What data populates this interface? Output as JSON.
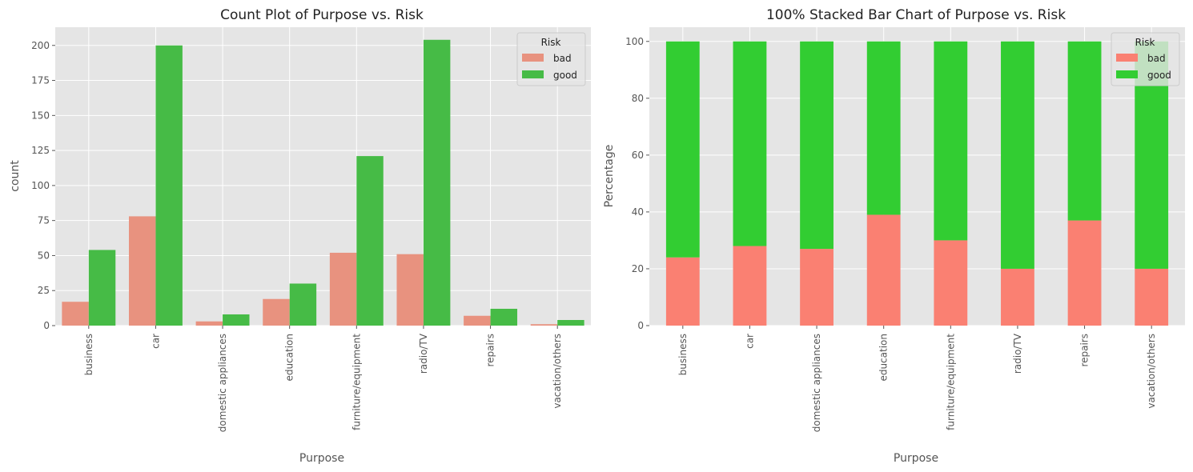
{
  "chart_data": [
    {
      "type": "bar",
      "title": "Count Plot of Purpose vs. Risk",
      "xlabel": "Purpose",
      "ylabel": "count",
      "ylim": [
        0,
        213
      ],
      "yticks": [
        0,
        25,
        50,
        75,
        100,
        125,
        150,
        175,
        200
      ],
      "grid": true,
      "legend": {
        "title": "Risk",
        "placement": "top-right"
      },
      "categories": [
        "business",
        "car",
        "domestic appliances",
        "education",
        "furniture/equipment",
        "radio/TV",
        "repairs",
        "vacation/others"
      ],
      "series": [
        {
          "name": "bad",
          "color": "#e8927f",
          "values": [
            17,
            78,
            3,
            19,
            52,
            51,
            7,
            1
          ]
        },
        {
          "name": "good",
          "color": "#46bb46",
          "values": [
            54,
            200,
            8,
            30,
            121,
            204,
            12,
            4
          ]
        }
      ]
    },
    {
      "type": "bar",
      "stacked": true,
      "title": "100% Stacked Bar Chart of Purpose vs. Risk",
      "xlabel": "Purpose",
      "ylabel": "Percentage",
      "ylim": [
        0,
        105
      ],
      "yticks": [
        0,
        20,
        40,
        60,
        80,
        100
      ],
      "grid": true,
      "legend": {
        "title": "Risk",
        "placement": "top-right"
      },
      "categories": [
        "business",
        "car",
        "domestic appliances",
        "education",
        "furniture/equipment",
        "radio/TV",
        "repairs",
        "vacation/others"
      ],
      "series": [
        {
          "name": "bad",
          "color": "#fa8072",
          "values": [
            24,
            28,
            27,
            39,
            30,
            20,
            37,
            20
          ]
        },
        {
          "name": "good",
          "color": "#32cd32",
          "values": [
            76,
            72,
            73,
            61,
            70,
            80,
            63,
            80
          ]
        }
      ]
    }
  ]
}
